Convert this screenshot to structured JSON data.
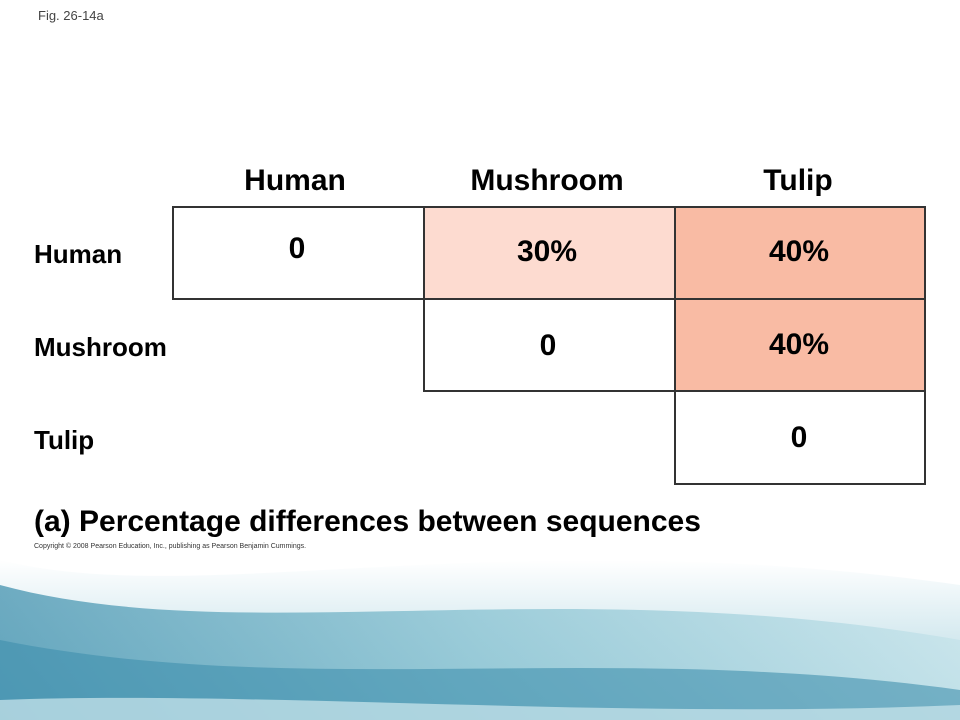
{
  "figure_label": "Fig. 26-14a",
  "columns": [
    "Human",
    "Mushroom",
    "Tulip"
  ],
  "rows": [
    "Human",
    "Mushroom",
    "Tulip"
  ],
  "cells": [
    {
      "row": 0,
      "col": 0,
      "value": "0",
      "fill": "#ffffff"
    },
    {
      "row": 0,
      "col": 1,
      "value": "30%",
      "fill": "#fddbd0"
    },
    {
      "row": 0,
      "col": 2,
      "value": "40%",
      "fill": "#f9bba4"
    },
    {
      "row": 1,
      "col": 1,
      "value": "0",
      "fill": "#ffffff"
    },
    {
      "row": 1,
      "col": 2,
      "value": "40%",
      "fill": "#f9bba4"
    },
    {
      "row": 2,
      "col": 2,
      "value": "0",
      "fill": "#ffffff"
    }
  ],
  "caption": "(a) Percentage differences between sequences",
  "copyright": "Copyright © 2008 Pearson Education, Inc., publishing as Pearson Benjamin Cummings.",
  "colors": {
    "light_pink": "#fddbd0",
    "salmon": "#f9bba4",
    "border": "#333333",
    "background_teal": "#5fa8c0"
  }
}
